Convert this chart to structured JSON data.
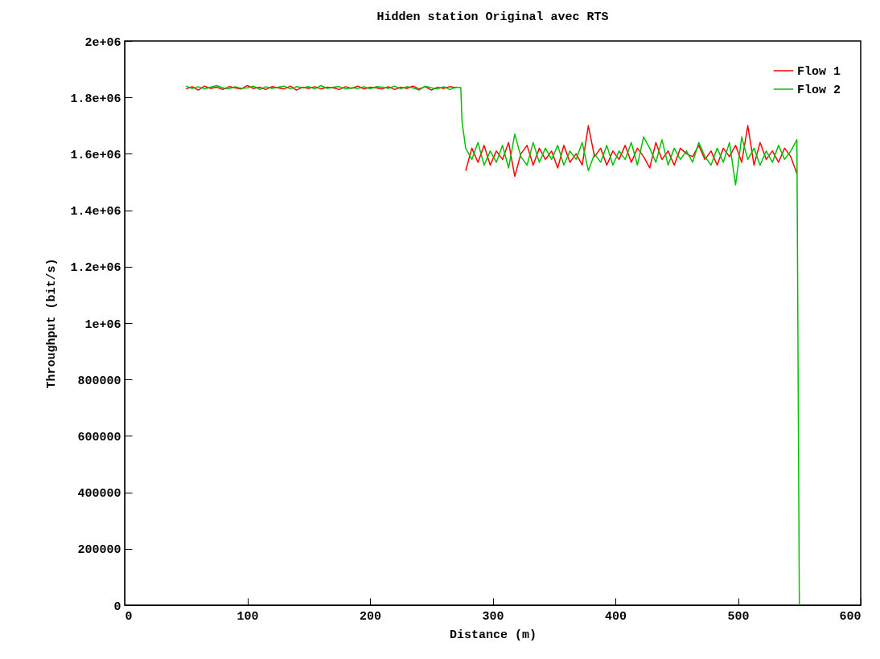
{
  "chart_data": {
    "type": "line",
    "title": "Hidden station Original avec RTS",
    "xlabel": "Distance (m)",
    "ylabel": "Throughput (bit/s)",
    "x": [
      50,
      55,
      60,
      65,
      70,
      75,
      80,
      85,
      90,
      95,
      100,
      105,
      110,
      115,
      120,
      125,
      130,
      135,
      140,
      145,
      150,
      155,
      160,
      165,
      170,
      175,
      180,
      185,
      190,
      195,
      200,
      205,
      210,
      215,
      220,
      225,
      230,
      235,
      240,
      245,
      250,
      255,
      260,
      265,
      270,
      274,
      275,
      278,
      283,
      288,
      293,
      298,
      303,
      308,
      313,
      318,
      323,
      328,
      333,
      338,
      343,
      348,
      353,
      358,
      363,
      368,
      373,
      378,
      383,
      388,
      393,
      398,
      403,
      408,
      413,
      418,
      423,
      428,
      433,
      438,
      443,
      448,
      453,
      458,
      463,
      468,
      473,
      478,
      483,
      488,
      493,
      498,
      503,
      508,
      513,
      518,
      523,
      528,
      533,
      538,
      543,
      548,
      549,
      550
    ],
    "series": [
      {
        "name": "Flow 1",
        "color": "#ff0000",
        "values": [
          1830000,
          1838000,
          1826000,
          1840000,
          1832000,
          1836000,
          1828000,
          1838000,
          1834000,
          1830000,
          1842000,
          1832000,
          1836000,
          1828000,
          1838000,
          1834000,
          1830000,
          1840000,
          1826000,
          1836000,
          1832000,
          1838000,
          1830000,
          1836000,
          1834000,
          1828000,
          1838000,
          1832000,
          1840000,
          1830000,
          1836000,
          1834000,
          1830000,
          1838000,
          1828000,
          1836000,
          1832000,
          1840000,
          1830000,
          1838000,
          1826000,
          1836000,
          1832000,
          1838000,
          1834000,
          null,
          null,
          1540000,
          1620000,
          1570000,
          1630000,
          1560000,
          1610000,
          1580000,
          1640000,
          1520000,
          1600000,
          1630000,
          1560000,
          1620000,
          1580000,
          1610000,
          1550000,
          1630000,
          1570000,
          1600000,
          1560000,
          1700000,
          1590000,
          1620000,
          1560000,
          1610000,
          1580000,
          1630000,
          1570000,
          1620000,
          1590000,
          1550000,
          1640000,
          1580000,
          1610000,
          1560000,
          1620000,
          1600000,
          1590000,
          1630000,
          1580000,
          1610000,
          1560000,
          1620000,
          1590000,
          1630000,
          1570000,
          1700000,
          1560000,
          1640000,
          1580000,
          1610000,
          1570000,
          1620000,
          1590000,
          1530000,
          null,
          null
        ]
      },
      {
        "name": "Flow 2",
        "color": "#00c000",
        "values": [
          1840000,
          1832000,
          1838000,
          1830000,
          1836000,
          1842000,
          1834000,
          1830000,
          1838000,
          1832000,
          1834000,
          1840000,
          1828000,
          1838000,
          1832000,
          1836000,
          1840000,
          1830000,
          1838000,
          1834000,
          1838000,
          1830000,
          1842000,
          1832000,
          1836000,
          1838000,
          1830000,
          1834000,
          1832000,
          1838000,
          1830000,
          1838000,
          1836000,
          1832000,
          1840000,
          1830000,
          1838000,
          1834000,
          1826000,
          1840000,
          1834000,
          1830000,
          1838000,
          1828000,
          1836000,
          1835000,
          1715000,
          1620000,
          1580000,
          1640000,
          1560000,
          1610000,
          1570000,
          1630000,
          1550000,
          1670000,
          1590000,
          1560000,
          1640000,
          1570000,
          1620000,
          1580000,
          1630000,
          1560000,
          1610000,
          1580000,
          1640000,
          1540000,
          1600000,
          1570000,
          1630000,
          1560000,
          1610000,
          1580000,
          1640000,
          1560000,
          1660000,
          1620000,
          1570000,
          1650000,
          1560000,
          1620000,
          1580000,
          1610000,
          1570000,
          1640000,
          1590000,
          1560000,
          1620000,
          1570000,
          1640000,
          1490000,
          1660000,
          1580000,
          1620000,
          1560000,
          1610000,
          1570000,
          1630000,
          1580000,
          1610000,
          1650000,
          800000,
          0
        ]
      }
    ],
    "xlim": [
      0,
      600
    ],
    "xticks": [
      0,
      100,
      200,
      300,
      400,
      500,
      600
    ],
    "ylim": [
      0,
      2000000
    ],
    "yticks": [
      0,
      200000,
      400000,
      600000,
      800000,
      {
        "value": 1000000,
        "label": "1e+06"
      },
      {
        "value": 1200000,
        "label": "1.2e+06"
      },
      {
        "value": 1400000,
        "label": "1.4e+06"
      },
      {
        "value": 1600000,
        "label": "1.6e+06"
      },
      {
        "value": 1800000,
        "label": "1.8e+06"
      },
      {
        "value": 2000000,
        "label": "2e+06"
      }
    ],
    "legend": "top right",
    "grid": false
  }
}
